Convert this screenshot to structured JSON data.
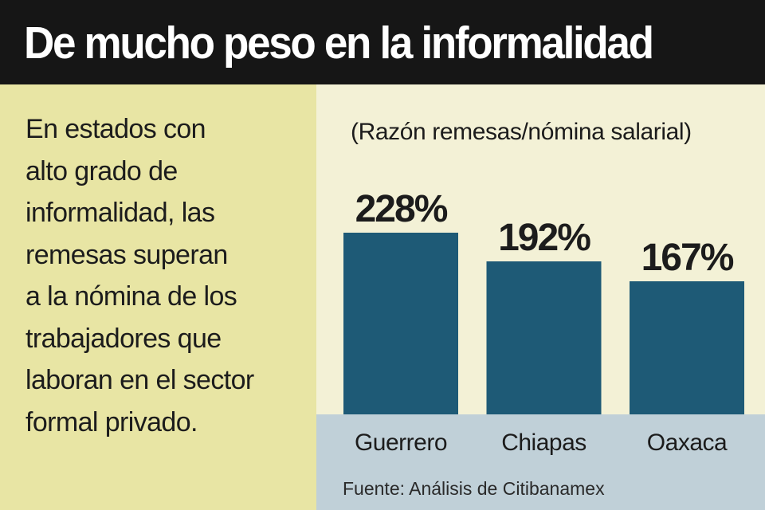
{
  "header": {
    "title": "De mucho peso en la informalidad"
  },
  "description": {
    "lines": [
      "En estados con",
      "alto grado de",
      "informalidad, las",
      "remesas superan",
      "a la nómina de los",
      "trabajadores que",
      "laboran en el sector",
      "formal privado."
    ]
  },
  "chart_data": {
    "type": "bar",
    "title": "De mucho peso en la informalidad",
    "subtitle": "(Razón remesas/nómina salarial)",
    "xlabel": "",
    "ylabel": "",
    "categories": [
      "Guerrero",
      "Chiapas",
      "Oaxaca"
    ],
    "values": [
      228,
      192,
      167
    ],
    "value_labels": [
      "228%",
      "192%",
      "167%"
    ],
    "unit": "%",
    "grid": false,
    "legend": "none",
    "bar_color": "#1e5a76",
    "source": "Fuente: Análisis de Citibanamex"
  },
  "colors": {
    "header_bg": "#161616",
    "header_text": "#ffffff",
    "left_bg": "#e8e5a4",
    "plot_bg": "#f3f1d6",
    "axis_bg": "#c0d0d8",
    "bar": "#1e5a76",
    "text": "#1c1c1c"
  }
}
